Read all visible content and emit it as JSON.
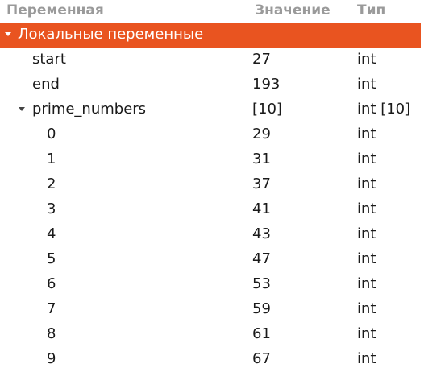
{
  "header": {
    "col_name": "Переменная",
    "col_value": "Значение",
    "col_type": "Тип"
  },
  "group": {
    "label": "Локальные переменные"
  },
  "vars": [
    {
      "name": "start",
      "value": "27",
      "type": "int"
    },
    {
      "name": "end",
      "value": "193",
      "type": "int"
    },
    {
      "name": "prime_numbers",
      "value": "[10]",
      "type": "int [10]"
    }
  ],
  "elements": [
    {
      "name": "0",
      "value": "29",
      "type": "int"
    },
    {
      "name": "1",
      "value": "31",
      "type": "int"
    },
    {
      "name": "2",
      "value": "37",
      "type": "int"
    },
    {
      "name": "3",
      "value": "41",
      "type": "int"
    },
    {
      "name": "4",
      "value": "43",
      "type": "int"
    },
    {
      "name": "5",
      "value": "47",
      "type": "int"
    },
    {
      "name": "6",
      "value": "53",
      "type": "int"
    },
    {
      "name": "7",
      "value": "59",
      "type": "int"
    },
    {
      "name": "8",
      "value": "61",
      "type": "int"
    },
    {
      "name": "9",
      "value": "67",
      "type": "int"
    }
  ],
  "colors": {
    "accent": "#e95420",
    "header_text": "#9a9a9a",
    "text": "#1a1a1a"
  },
  "icons": {
    "expanded": "triangle-down-icon"
  }
}
